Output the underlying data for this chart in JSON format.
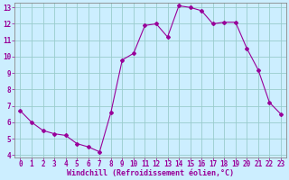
{
  "hours": [
    0,
    1,
    2,
    3,
    4,
    5,
    6,
    7,
    8,
    9,
    10,
    11,
    12,
    13,
    14,
    15,
    16,
    17,
    18,
    19,
    20,
    21,
    22,
    23
  ],
  "values": [
    6.7,
    6.0,
    5.5,
    5.3,
    5.2,
    4.7,
    4.5,
    4.2,
    6.6,
    9.8,
    10.2,
    11.9,
    12.0,
    11.2,
    13.1,
    13.0,
    12.8,
    12.0,
    12.1,
    12.1,
    10.5,
    9.2,
    7.2,
    6.5
  ],
  "line_color": "#990099",
  "marker": "D",
  "marker_size": 2,
  "bg_color": "#cceeff",
  "grid_color": "#99cccc",
  "xlabel": "Windchill (Refroidissement éolien,°C)",
  "tick_label_color": "#990099",
  "ylim_min": 4,
  "ylim_max": 13,
  "xlim_min": 0,
  "xlim_max": 23,
  "yticks": [
    4,
    5,
    6,
    7,
    8,
    9,
    10,
    11,
    12,
    13
  ],
  "xticks": [
    0,
    1,
    2,
    3,
    4,
    5,
    6,
    7,
    8,
    9,
    10,
    11,
    12,
    13,
    14,
    15,
    16,
    17,
    18,
    19,
    20,
    21,
    22,
    23
  ],
  "spine_color": "#888888",
  "xlabel_fontsize": 6,
  "tick_fontsize": 5.5
}
